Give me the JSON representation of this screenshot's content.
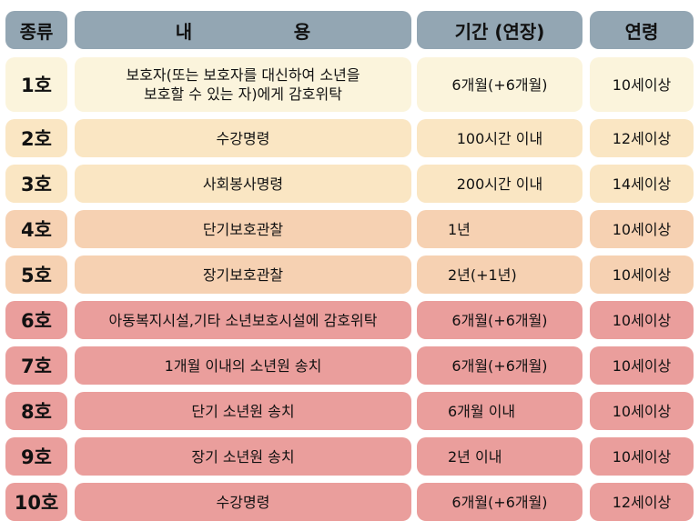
{
  "colors": {
    "header": "#93a6b3",
    "cream": "#fbf4dc",
    "beige": "#fae6c3",
    "peach": "#f6d1b2",
    "pink": "#ea9e9c"
  },
  "header": {
    "type": "종류",
    "content_left": "내",
    "content_right": "용",
    "period": "기간 (연장)",
    "age": "연령"
  },
  "rows": [
    {
      "type": "1호",
      "content_line1": "보호자(또는 보호자를 대신하여 소년을",
      "content_line2": "보호할 수 있는 자)에게 감호위탁",
      "period": "6개월(+6개월)",
      "age": "10세이상"
    },
    {
      "type": "2호",
      "content": "수강명령",
      "period": "100시간 이내",
      "age": "12세이상"
    },
    {
      "type": "3호",
      "content": "사회봉사명령",
      "period": "200시간 이내",
      "age": "14세이상"
    },
    {
      "type": "4호",
      "content": "단기보호관찰",
      "period": "1년",
      "age": "10세이상"
    },
    {
      "type": "5호",
      "content": "장기보호관찰",
      "period": "2년(+1년)",
      "age": "10세이상"
    },
    {
      "type": "6호",
      "content": "아동복지시설,기타 소년보호시설에 감호위탁",
      "period": "6개월(+6개월)",
      "age": "10세이상"
    },
    {
      "type": "7호",
      "content": "1개월 이내의 소년원 송치",
      "period": "6개월(+6개월)",
      "age": "10세이상"
    },
    {
      "type": "8호",
      "content": "단기 소년원 송치",
      "period": "6개월 이내",
      "age": "10세이상"
    },
    {
      "type": "9호",
      "content": "장기 소년원 송치",
      "period": "2년 이내",
      "age": "10세이상"
    },
    {
      "type": "10호",
      "content": "수강명령",
      "period": "6개월(+6개월)",
      "age": "12세이상"
    }
  ]
}
